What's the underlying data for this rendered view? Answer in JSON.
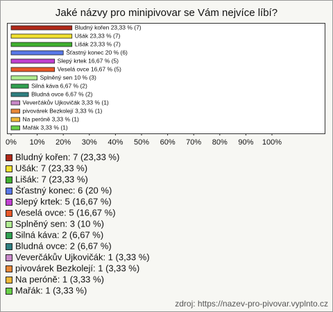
{
  "chart_data": {
    "type": "bar",
    "orientation": "horizontal",
    "title": "Jaké názvy pro minipivovar se Vám nejvíce líbí?",
    "categories": [
      "Bludný kořen",
      "Ušák",
      "Lišák",
      "Šťastný konec",
      "Slepý krtek",
      "Veselá ovce",
      "Splněný sen",
      "Silná káva",
      "Bludná ovce",
      "Veverčákův Ujkovičák",
      "pivovárek Bezkolejí",
      "Na peróně",
      "Mařák"
    ],
    "values": [
      23.33,
      23.33,
      23.33,
      20,
      16.67,
      16.67,
      10,
      6.67,
      6.67,
      3.33,
      3.33,
      3.33,
      3.33
    ],
    "value_labels": [
      "Bludný kořen 23,33 % (7)",
      "Ušák 23,33 % (7)",
      "Lišák 23,33 % (7)",
      "Šťastný konec 20 % (6)",
      "Slepý krtek 16,67 % (5)",
      "Veselá ovce 16,67 % (5)",
      "Splněný sen 10 % (3)",
      "Silná káva 6,67 % (2)",
      "Bludná ovce 6,67 % (2)",
      "Veverčákův Ujkovičák 3,33 % (1)",
      "pivovárek Bezkolejí 3,33 % (1)",
      "Na peróně 3,33 % (1)",
      "Mařák 3,33 % (1)"
    ],
    "legend_labels": [
      "Bludný kořen: 7 (23,33 %)",
      "Ušák: 7 (23,33 %)",
      "Lišák: 7 (23,33 %)",
      "Šťastný konec: 6 (20 %)",
      "Slepý krtek: 5 (16,67 %)",
      "Veselá ovce: 5 (16,67 %)",
      "Splněný sen: 3 (10 %)",
      "Silná káva: 2 (6,67 %)",
      "Bludná ovce: 2 (6,67 %)",
      "Veverčákův Ujkovičák: 1 (3,33 %)",
      "pivovárek Bezkolejí: 1 (3,33 %)",
      "Na peróně: 1 (3,33 %)",
      "Mařák: 1 (3,33 %)"
    ],
    "colors": [
      "#b02818",
      "#f0e030",
      "#40b030",
      "#5878e8",
      "#c040d0",
      "#e85828",
      "#b0ec90",
      "#30a050",
      "#2f7f80",
      "#c888c8",
      "#e88838",
      "#f0b838",
      "#68d048"
    ],
    "xlim": [
      0,
      100
    ],
    "xticks": [
      {
        "value": 0,
        "label": "0%"
      },
      {
        "value": 10,
        "label": "10%"
      },
      {
        "value": 20,
        "label": "20%"
      },
      {
        "value": 30,
        "label": "30%"
      },
      {
        "value": 40,
        "label": "40%"
      },
      {
        "value": 50,
        "label": "50%"
      },
      {
        "value": 60,
        "label": "60%"
      },
      {
        "value": 70,
        "label": "70%"
      },
      {
        "value": 80,
        "label": "80%"
      },
      {
        "value": 90,
        "label": "90%"
      },
      {
        "value": 100,
        "label": "100%"
      }
    ],
    "source": "zdroj: https://nazev-pro-pivovar.vyplnto.cz"
  }
}
